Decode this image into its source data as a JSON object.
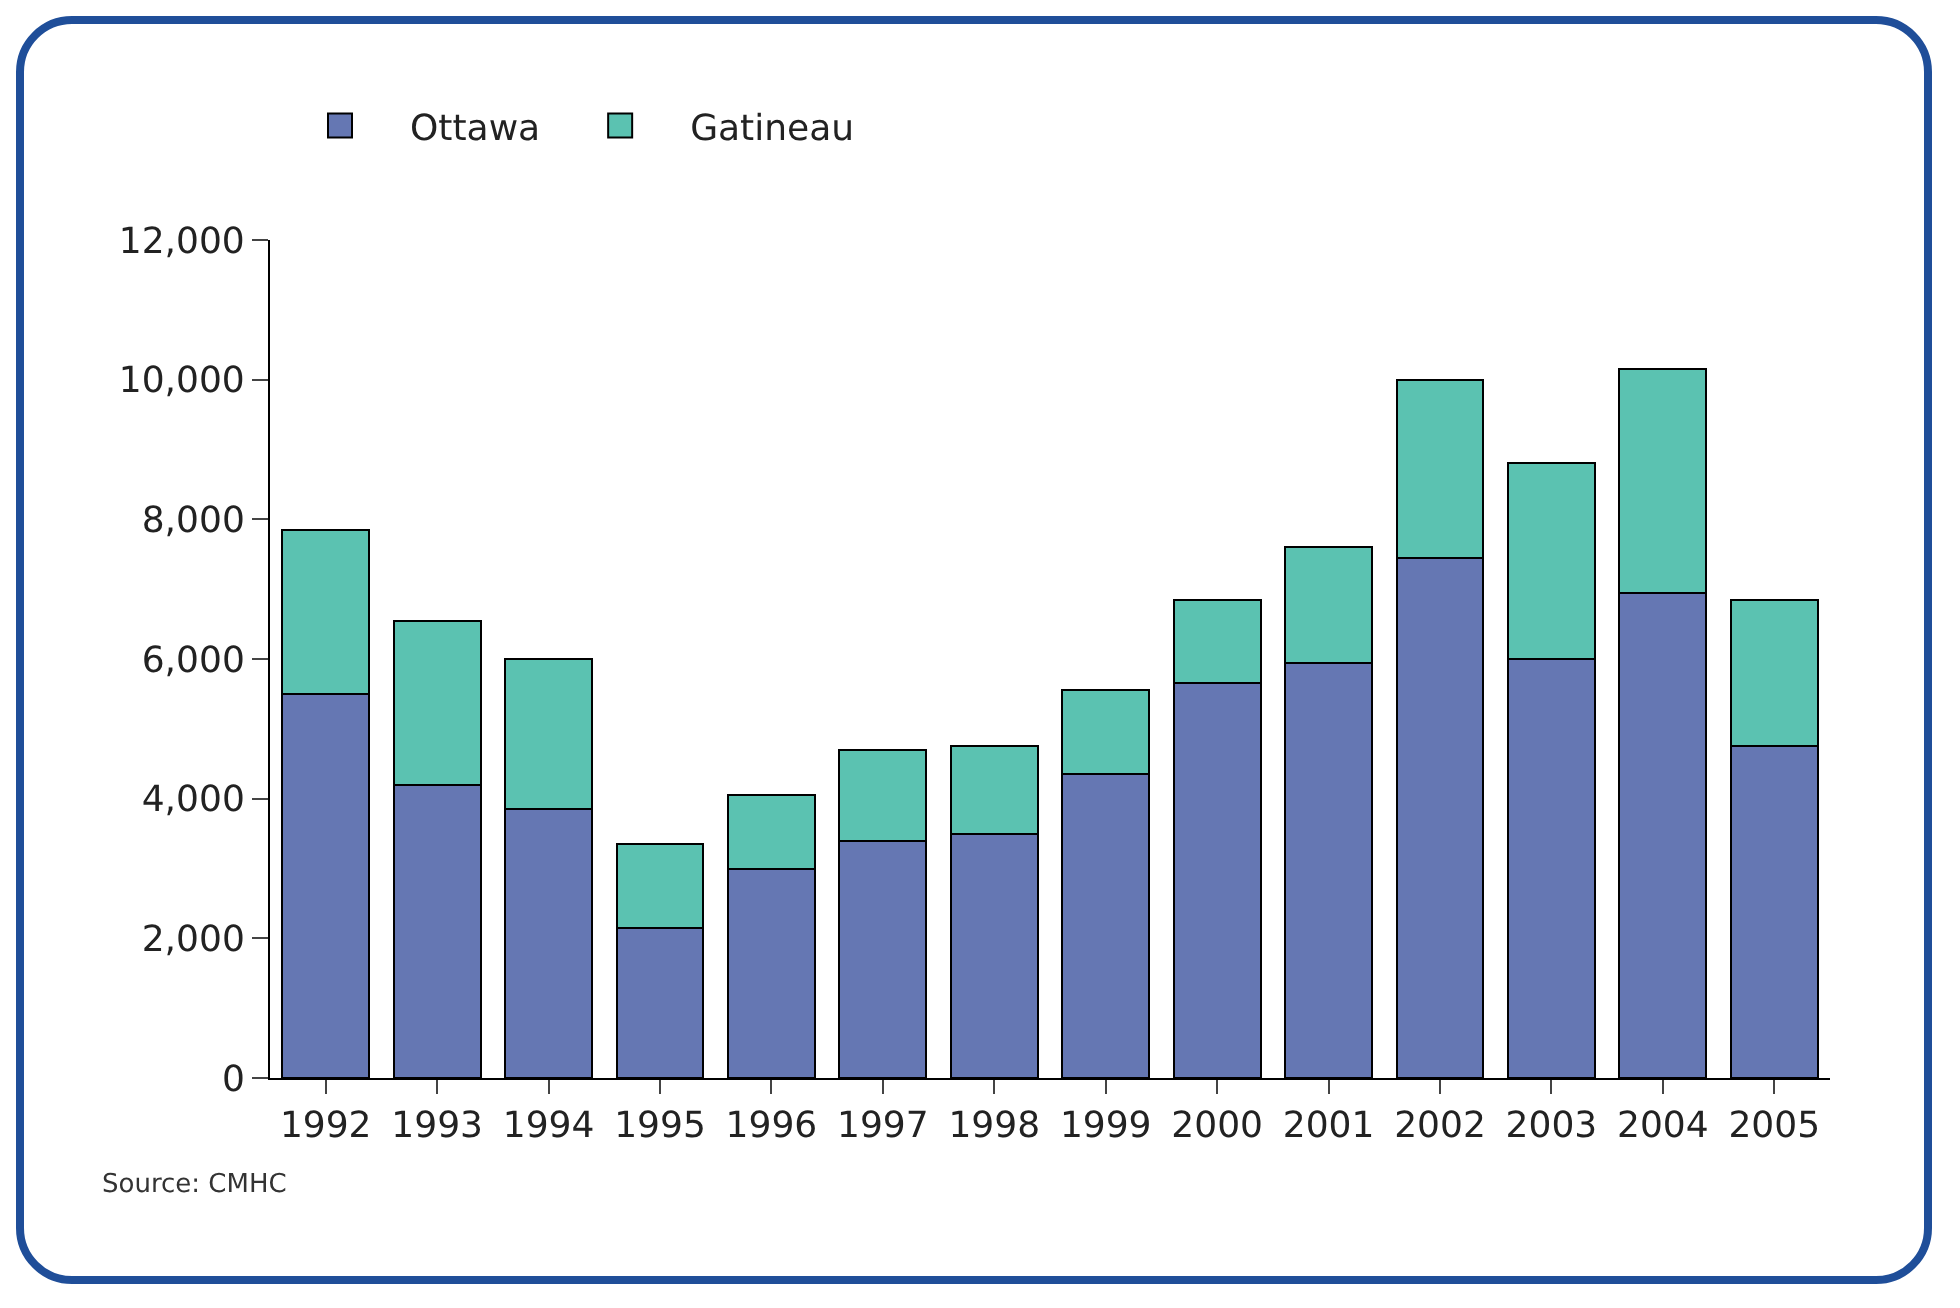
{
  "chart_data": {
    "type": "bar",
    "stacked": true,
    "categories": [
      "1992",
      "1993",
      "1994",
      "1995",
      "1996",
      "1997",
      "1998",
      "1999",
      "2000",
      "2001",
      "2002",
      "2003",
      "2004",
      "2005"
    ],
    "series": [
      {
        "name": "Ottawa",
        "color": "#6577b3",
        "values": [
          5500,
          4200,
          3850,
          2150,
          3000,
          3400,
          3500,
          4350,
          5650,
          5950,
          7450,
          6000,
          6950,
          4750
        ]
      },
      {
        "name": "Gatineau",
        "color": "#5bc2b1",
        "values": [
          2350,
          2350,
          2150,
          1200,
          1050,
          1300,
          1250,
          1200,
          1200,
          1650,
          2550,
          2800,
          3200,
          2100
        ]
      }
    ],
    "ylim": [
      0,
      12000
    ],
    "yticks": [
      0,
      {
        "value": 2000,
        "label": "2,000"
      },
      {
        "value": 4000,
        "label": "4,000"
      },
      {
        "value": 6000,
        "label": "6,000"
      },
      {
        "value": 8000,
        "label": "8,000"
      },
      {
        "value": 10000,
        "label": "10,000"
      },
      {
        "value": 12000,
        "label": "12,000"
      }
    ],
    "grid": false,
    "legend": "top left",
    "annotations": [
      "Source: CMHC"
    ]
  }
}
